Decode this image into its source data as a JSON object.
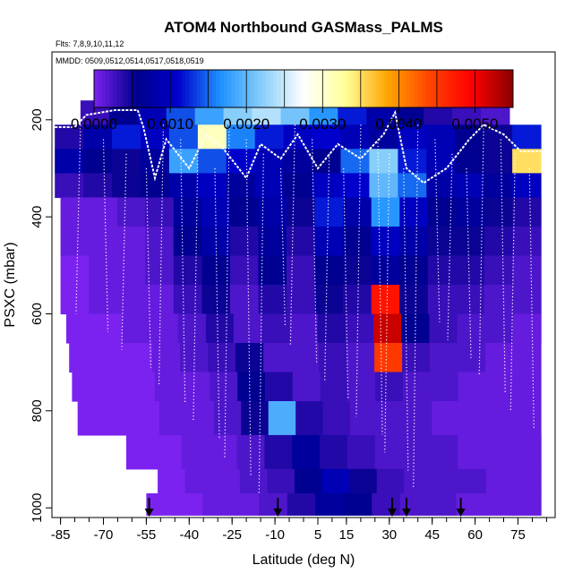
{
  "chart_data": {
    "type": "heatmap",
    "title": "ATOM4 Northbound GASMass_PALMS",
    "flights_label": "Flts: 7,8,9,10,11,12",
    "dates_label": "MMDD: 0509,0512,0514,0517,0518,0519",
    "xlabel": "Latitude (deg N)",
    "ylabel": "PSXC (mbar)",
    "xlim": [
      -88,
      88
    ],
    "ylim": [
      1020,
      60
    ],
    "x_ticks": [
      "-85",
      "-70",
      "-55",
      "-40",
      "-25",
      "-10",
      "5",
      "15",
      "30",
      "45",
      "60",
      "75"
    ],
    "x_tick_values": [
      -85,
      -70,
      -55,
      -40,
      -25,
      -10,
      5,
      15,
      30,
      45,
      60,
      75
    ],
    "y_ticks": [
      "200",
      "400",
      "600",
      "800",
      "1000"
    ],
    "y_tick_values": [
      200,
      400,
      600,
      800,
      1000
    ],
    "colorbar": {
      "min": 0,
      "max": 0.0055,
      "tick_labels": [
        "0.0000",
        "0.0010",
        "0.0020",
        "0.0030",
        "0.0040",
        "0.0050"
      ],
      "tick_values": [
        0,
        0.001,
        0.002,
        0.003,
        0.004,
        0.005
      ],
      "colors": [
        "#7b22f0",
        "#00008b",
        "#0000cd",
        "#1e90ff",
        "#87cefa",
        "#ffffff",
        "#ffff99",
        "#ffa500",
        "#ff4500",
        "#ff0000",
        "#8b0000"
      ]
    },
    "arrow_latitudes": [
      -54,
      -9,
      31,
      36,
      55
    ],
    "heat_rows": [
      {
        "p_top": 160,
        "p_bottom": 210,
        "lat_min": -78,
        "lat_max": 72,
        "values": [
          0.0003,
          0.0006,
          0.0009,
          0.0014,
          0.0018,
          0.0022,
          0.0024,
          0.0021,
          0.0017,
          0.0012,
          0.0008,
          0.0006,
          0.0004,
          0.0003,
          0.0002
        ]
      },
      {
        "p_top": 210,
        "p_bottom": 260,
        "lat_min": -87,
        "lat_max": 83,
        "values": [
          0.0004,
          0.0008,
          0.0012,
          0.001,
          0.0014,
          0.0031,
          0.0016,
          0.0012,
          0.001,
          0.0011,
          0.0009,
          0.0007,
          0.001,
          0.0009,
          0.0006,
          0.0005,
          0.0012
        ]
      },
      {
        "p_top": 260,
        "p_bottom": 310,
        "lat_min": -87,
        "lat_max": 83,
        "values": [
          0.0008,
          0.0006,
          0.0005,
          0.0007,
          0.0018,
          0.0014,
          0.0011,
          0.0009,
          0.0007,
          0.0006,
          0.0015,
          0.0022,
          0.0012,
          0.0009,
          0.0006,
          0.0005,
          0.0035
        ]
      },
      {
        "p_top": 310,
        "p_bottom": 360,
        "lat_min": -87,
        "lat_max": 83,
        "values": [
          0.0003,
          0.0004,
          0.0005,
          0.0006,
          0.0008,
          0.001,
          0.0007,
          0.0009,
          0.0006,
          0.001,
          0.0011,
          0.002,
          0.0015,
          0.0008,
          0.0009,
          0.0007,
          0.001
        ]
      },
      {
        "p_top": 360,
        "p_bottom": 420,
        "lat_min": -85,
        "lat_max": 83,
        "values": [
          0.0001,
          0.0001,
          0.0002,
          0.0003,
          0.0007,
          0.0009,
          0.0006,
          0.0008,
          0.0005,
          0.0012,
          0.0008,
          0.0017,
          0.001,
          0.0006,
          0.0007,
          0.0005,
          0.0004
        ]
      },
      {
        "p_top": 420,
        "p_bottom": 480,
        "lat_min": -85,
        "lat_max": 83,
        "values": [
          0.0001,
          0.0001,
          0.0001,
          0.0002,
          0.0006,
          0.0008,
          0.0004,
          0.0007,
          0.0004,
          0.0009,
          0.0006,
          0.001,
          0.0008,
          0.0005,
          0.0005,
          0.0004,
          0.0003
        ]
      },
      {
        "p_top": 480,
        "p_bottom": 540,
        "lat_min": -85,
        "lat_max": 83,
        "values": [
          0.0,
          0.0001,
          0.0001,
          0.0002,
          0.0004,
          0.0006,
          0.0003,
          0.0006,
          0.0003,
          0.0006,
          0.0005,
          0.0007,
          0.0006,
          0.0004,
          0.0004,
          0.0003,
          0.0002
        ]
      },
      {
        "p_top": 540,
        "p_bottom": 600,
        "lat_min": -85,
        "lat_max": 83,
        "values": [
          0.0,
          0.0001,
          0.0001,
          0.0001,
          0.0003,
          0.0005,
          0.0002,
          0.0004,
          0.0003,
          0.0005,
          0.0004,
          0.0048,
          0.0005,
          0.0003,
          0.0003,
          0.0002,
          0.0002
        ]
      },
      {
        "p_top": 600,
        "p_bottom": 660,
        "lat_min": -83,
        "lat_max": 83,
        "values": [
          0.0,
          0.0,
          0.0001,
          0.0001,
          0.0002,
          0.0004,
          0.0002,
          0.0003,
          0.0002,
          0.0004,
          0.0003,
          0.0052,
          0.0006,
          0.0003,
          0.0002,
          0.0002,
          0.0001
        ]
      },
      {
        "p_top": 660,
        "p_bottom": 720,
        "lat_min": -82,
        "lat_max": 83,
        "values": [
          0.0,
          0.0,
          0.0,
          0.0001,
          0.0002,
          0.0003,
          0.0005,
          0.0002,
          0.0002,
          0.0003,
          0.0002,
          0.0045,
          0.0003,
          0.0002,
          0.0002,
          0.0001,
          0.0001
        ]
      },
      {
        "p_top": 720,
        "p_bottom": 780,
        "lat_min": -81,
        "lat_max": 83,
        "values": [
          0.0,
          0.0,
          0.0,
          0.0001,
          0.0001,
          0.0002,
          0.0006,
          0.0004,
          0.0002,
          0.0003,
          0.0002,
          0.0003,
          0.0002,
          0.0002,
          0.0001,
          0.0001,
          0.0001
        ]
      },
      {
        "p_top": 780,
        "p_bottom": 850,
        "lat_min": -79,
        "lat_max": 83,
        "values": [
          0.0,
          0.0,
          0.0,
          0.0001,
          0.0001,
          0.0002,
          0.0005,
          0.0019,
          0.0004,
          0.0003,
          0.0002,
          0.0002,
          0.0002,
          0.0001,
          0.0001,
          0.0001,
          0.0001
        ]
      },
      {
        "p_top": 850,
        "p_bottom": 920,
        "lat_min": -62,
        "lat_max": 83,
        "values": [
          0.0,
          0.0,
          0.0001,
          0.0001,
          0.0002,
          0.0004,
          0.0007,
          0.0004,
          0.0003,
          0.0002,
          0.0002,
          0.0002,
          0.0001,
          0.0001,
          0.0001
        ]
      },
      {
        "p_top": 920,
        "p_bottom": 970,
        "lat_min": -51,
        "lat_max": 83,
        "values": [
          0.0,
          0.0001,
          0.0001,
          0.0002,
          0.0003,
          0.0006,
          0.0009,
          0.0005,
          0.0003,
          0.0002,
          0.0002,
          0.0002,
          0.0001,
          0.0001
        ]
      },
      {
        "p_top": 970,
        "p_bottom": 1015,
        "lat_min": -55,
        "lat_max": 83,
        "values": [
          0.0,
          0.0,
          0.0001,
          0.0001,
          0.0002,
          0.0004,
          0.0007,
          0.0006,
          0.0003,
          0.0002,
          0.0002,
          0.0001,
          0.0001,
          0.0001
        ]
      }
    ]
  }
}
